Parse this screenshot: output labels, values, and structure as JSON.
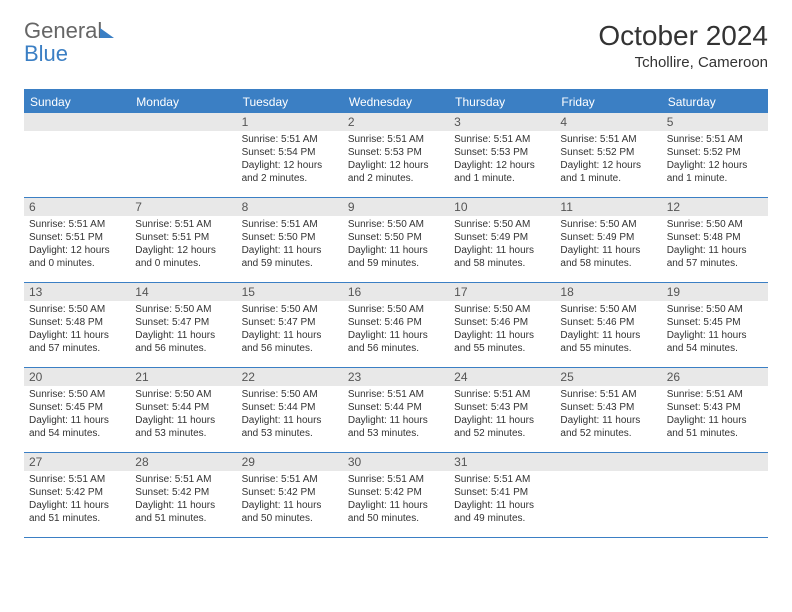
{
  "logo": {
    "line1": "General",
    "line2": "Blue"
  },
  "title": "October 2024",
  "location": "Tchollire, Cameroon",
  "colors": {
    "accent": "#3b7fc4",
    "header_bg": "#3b7fc4",
    "header_text": "#ffffff",
    "daynum_bg": "#e8e8e8",
    "border": "#3b7fc4",
    "text": "#333333",
    "logo_gray": "#666666"
  },
  "day_names": [
    "Sunday",
    "Monday",
    "Tuesday",
    "Wednesday",
    "Thursday",
    "Friday",
    "Saturday"
  ],
  "weeks": [
    [
      null,
      null,
      {
        "n": "1",
        "sr": "Sunrise: 5:51 AM",
        "ss": "Sunset: 5:54 PM",
        "d1": "Daylight: 12 hours",
        "d2": "and 2 minutes."
      },
      {
        "n": "2",
        "sr": "Sunrise: 5:51 AM",
        "ss": "Sunset: 5:53 PM",
        "d1": "Daylight: 12 hours",
        "d2": "and 2 minutes."
      },
      {
        "n": "3",
        "sr": "Sunrise: 5:51 AM",
        "ss": "Sunset: 5:53 PM",
        "d1": "Daylight: 12 hours",
        "d2": "and 1 minute."
      },
      {
        "n": "4",
        "sr": "Sunrise: 5:51 AM",
        "ss": "Sunset: 5:52 PM",
        "d1": "Daylight: 12 hours",
        "d2": "and 1 minute."
      },
      {
        "n": "5",
        "sr": "Sunrise: 5:51 AM",
        "ss": "Sunset: 5:52 PM",
        "d1": "Daylight: 12 hours",
        "d2": "and 1 minute."
      }
    ],
    [
      {
        "n": "6",
        "sr": "Sunrise: 5:51 AM",
        "ss": "Sunset: 5:51 PM",
        "d1": "Daylight: 12 hours",
        "d2": "and 0 minutes."
      },
      {
        "n": "7",
        "sr": "Sunrise: 5:51 AM",
        "ss": "Sunset: 5:51 PM",
        "d1": "Daylight: 12 hours",
        "d2": "and 0 minutes."
      },
      {
        "n": "8",
        "sr": "Sunrise: 5:51 AM",
        "ss": "Sunset: 5:50 PM",
        "d1": "Daylight: 11 hours",
        "d2": "and 59 minutes."
      },
      {
        "n": "9",
        "sr": "Sunrise: 5:50 AM",
        "ss": "Sunset: 5:50 PM",
        "d1": "Daylight: 11 hours",
        "d2": "and 59 minutes."
      },
      {
        "n": "10",
        "sr": "Sunrise: 5:50 AM",
        "ss": "Sunset: 5:49 PM",
        "d1": "Daylight: 11 hours",
        "d2": "and 58 minutes."
      },
      {
        "n": "11",
        "sr": "Sunrise: 5:50 AM",
        "ss": "Sunset: 5:49 PM",
        "d1": "Daylight: 11 hours",
        "d2": "and 58 minutes."
      },
      {
        "n": "12",
        "sr": "Sunrise: 5:50 AM",
        "ss": "Sunset: 5:48 PM",
        "d1": "Daylight: 11 hours",
        "d2": "and 57 minutes."
      }
    ],
    [
      {
        "n": "13",
        "sr": "Sunrise: 5:50 AM",
        "ss": "Sunset: 5:48 PM",
        "d1": "Daylight: 11 hours",
        "d2": "and 57 minutes."
      },
      {
        "n": "14",
        "sr": "Sunrise: 5:50 AM",
        "ss": "Sunset: 5:47 PM",
        "d1": "Daylight: 11 hours",
        "d2": "and 56 minutes."
      },
      {
        "n": "15",
        "sr": "Sunrise: 5:50 AM",
        "ss": "Sunset: 5:47 PM",
        "d1": "Daylight: 11 hours",
        "d2": "and 56 minutes."
      },
      {
        "n": "16",
        "sr": "Sunrise: 5:50 AM",
        "ss": "Sunset: 5:46 PM",
        "d1": "Daylight: 11 hours",
        "d2": "and 56 minutes."
      },
      {
        "n": "17",
        "sr": "Sunrise: 5:50 AM",
        "ss": "Sunset: 5:46 PM",
        "d1": "Daylight: 11 hours",
        "d2": "and 55 minutes."
      },
      {
        "n": "18",
        "sr": "Sunrise: 5:50 AM",
        "ss": "Sunset: 5:46 PM",
        "d1": "Daylight: 11 hours",
        "d2": "and 55 minutes."
      },
      {
        "n": "19",
        "sr": "Sunrise: 5:50 AM",
        "ss": "Sunset: 5:45 PM",
        "d1": "Daylight: 11 hours",
        "d2": "and 54 minutes."
      }
    ],
    [
      {
        "n": "20",
        "sr": "Sunrise: 5:50 AM",
        "ss": "Sunset: 5:45 PM",
        "d1": "Daylight: 11 hours",
        "d2": "and 54 minutes."
      },
      {
        "n": "21",
        "sr": "Sunrise: 5:50 AM",
        "ss": "Sunset: 5:44 PM",
        "d1": "Daylight: 11 hours",
        "d2": "and 53 minutes."
      },
      {
        "n": "22",
        "sr": "Sunrise: 5:50 AM",
        "ss": "Sunset: 5:44 PM",
        "d1": "Daylight: 11 hours",
        "d2": "and 53 minutes."
      },
      {
        "n": "23",
        "sr": "Sunrise: 5:51 AM",
        "ss": "Sunset: 5:44 PM",
        "d1": "Daylight: 11 hours",
        "d2": "and 53 minutes."
      },
      {
        "n": "24",
        "sr": "Sunrise: 5:51 AM",
        "ss": "Sunset: 5:43 PM",
        "d1": "Daylight: 11 hours",
        "d2": "and 52 minutes."
      },
      {
        "n": "25",
        "sr": "Sunrise: 5:51 AM",
        "ss": "Sunset: 5:43 PM",
        "d1": "Daylight: 11 hours",
        "d2": "and 52 minutes."
      },
      {
        "n": "26",
        "sr": "Sunrise: 5:51 AM",
        "ss": "Sunset: 5:43 PM",
        "d1": "Daylight: 11 hours",
        "d2": "and 51 minutes."
      }
    ],
    [
      {
        "n": "27",
        "sr": "Sunrise: 5:51 AM",
        "ss": "Sunset: 5:42 PM",
        "d1": "Daylight: 11 hours",
        "d2": "and 51 minutes."
      },
      {
        "n": "28",
        "sr": "Sunrise: 5:51 AM",
        "ss": "Sunset: 5:42 PM",
        "d1": "Daylight: 11 hours",
        "d2": "and 51 minutes."
      },
      {
        "n": "29",
        "sr": "Sunrise: 5:51 AM",
        "ss": "Sunset: 5:42 PM",
        "d1": "Daylight: 11 hours",
        "d2": "and 50 minutes."
      },
      {
        "n": "30",
        "sr": "Sunrise: 5:51 AM",
        "ss": "Sunset: 5:42 PM",
        "d1": "Daylight: 11 hours",
        "d2": "and 50 minutes."
      },
      {
        "n": "31",
        "sr": "Sunrise: 5:51 AM",
        "ss": "Sunset: 5:41 PM",
        "d1": "Daylight: 11 hours",
        "d2": "and 49 minutes."
      },
      null,
      null
    ]
  ]
}
